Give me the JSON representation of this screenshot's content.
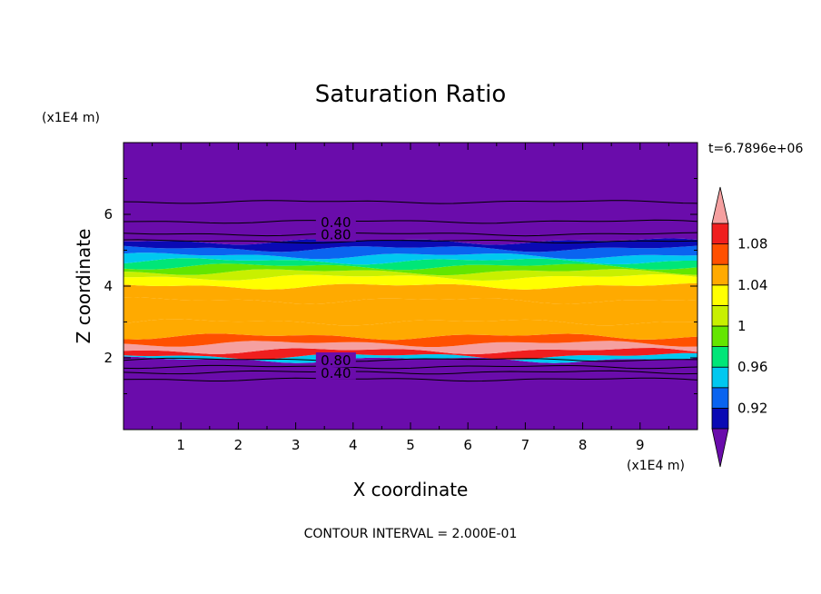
{
  "chart_data": {
    "type": "heatmap",
    "title": "Saturation Ratio",
    "xlabel": "X coordinate",
    "ylabel": "Z coordinate",
    "x_unit": "(x1E4 m)",
    "y_unit": "(x1E4 m)",
    "time_label": "t=6.7896e+06",
    "footer": "CONTOUR INTERVAL = 2.000E-01",
    "xlim": [
      0,
      10
    ],
    "ylim": [
      0,
      8
    ],
    "x_ticks": [
      1,
      2,
      3,
      4,
      5,
      6,
      7,
      8,
      9
    ],
    "y_ticks": [
      2,
      4,
      6
    ],
    "grid": false,
    "legend_placement": "right",
    "colorbar": {
      "levels": [
        0.9,
        0.92,
        0.94,
        0.96,
        0.98,
        1.0,
        1.02,
        1.04,
        1.06,
        1.08,
        1.1
      ],
      "labels": [
        "0.92",
        "0.96",
        "1",
        "1.04",
        "1.08"
      ],
      "label_values": [
        0.92,
        0.96,
        1.0,
        1.04,
        1.08
      ],
      "colors": [
        "#6a0cab",
        "#0a0ab4",
        "#0a64f0",
        "#00c8f0",
        "#00e678",
        "#64e600",
        "#c8f000",
        "#ffff00",
        "#ffaa00",
        "#ff5000",
        "#f01e1e"
      ],
      "under_color": "#6a0cab",
      "over_color": "#f5a0a0"
    },
    "bands": [
      {
        "z0": 0.0,
        "z1": 1.95,
        "value": 0.2
      },
      {
        "z0": 1.95,
        "z1": 2.05,
        "value": 0.95
      },
      {
        "z0": 2.05,
        "z1": 2.2,
        "value": 1.08
      },
      {
        "z0": 2.2,
        "z1": 2.4,
        "value": 1.12
      },
      {
        "z0": 2.4,
        "z1": 2.6,
        "value": 1.07
      },
      {
        "z0": 2.6,
        "z1": 3.0,
        "value": 1.05
      },
      {
        "z0": 3.0,
        "z1": 3.6,
        "value": 1.04
      },
      {
        "z0": 3.6,
        "z1": 4.0,
        "value": 1.05
      },
      {
        "z0": 4.0,
        "z1": 4.25,
        "value": 1.03
      },
      {
        "z0": 4.25,
        "z1": 4.4,
        "value": 1.01
      },
      {
        "z0": 4.4,
        "z1": 4.55,
        "value": 0.99
      },
      {
        "z0": 4.55,
        "z1": 4.7,
        "value": 0.97
      },
      {
        "z0": 4.7,
        "z1": 4.85,
        "value": 0.95
      },
      {
        "z0": 4.85,
        "z1": 5.05,
        "value": 0.93
      },
      {
        "z0": 5.05,
        "z1": 5.25,
        "value": 0.91
      },
      {
        "z0": 5.25,
        "z1": 8.0,
        "value": 0.3
      }
    ],
    "contours": [
      {
        "z": 1.4,
        "label": ""
      },
      {
        "z": 1.6,
        "label": "0.40"
      },
      {
        "z": 1.75,
        "label": ""
      },
      {
        "z": 1.95,
        "label": "0.80"
      },
      {
        "z": 5.25,
        "label": ""
      },
      {
        "z": 5.45,
        "label": "0.80"
      },
      {
        "z": 5.8,
        "label": "0.40"
      },
      {
        "z": 6.35,
        "label": ""
      }
    ],
    "contour_label_x": 3.7
  }
}
